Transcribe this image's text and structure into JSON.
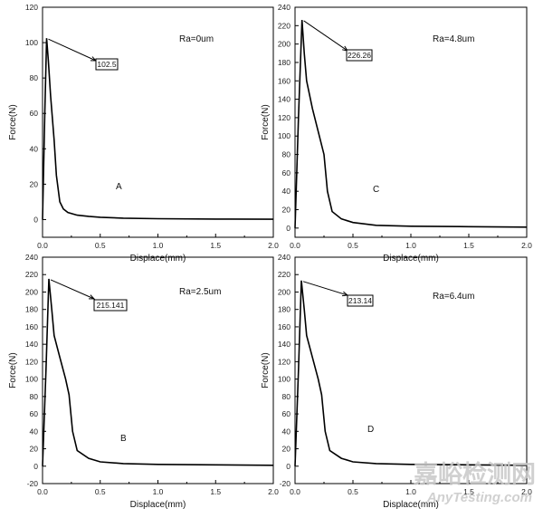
{
  "chart_data": [
    {
      "type": "line",
      "panel_letter": "A",
      "ra_label": "Ra=0um",
      "xlabel": "Displace(mm)",
      "ylabel": "Force(N)",
      "xlim": [
        0,
        2.0
      ],
      "ylim": [
        -10,
        120
      ],
      "xticks": [
        "0.0",
        "0.5",
        "1.0",
        "1.5",
        "2.0"
      ],
      "yticks": [
        "0",
        "20",
        "40",
        "60",
        "80",
        "100",
        "120"
      ],
      "peak_label": "102.5",
      "series": [
        {
          "name": "Ra=0um",
          "x": [
            0.0,
            0.02,
            0.035,
            0.05,
            0.07,
            0.1,
            0.12,
            0.15,
            0.18,
            0.22,
            0.3,
            0.4,
            0.5,
            0.7,
            1.0,
            1.5,
            2.0
          ],
          "y": [
            0,
            60,
            102.5,
            90,
            70,
            45,
            25,
            10,
            6,
            4,
            2.5,
            1.8,
            1.3,
            0.8,
            0.5,
            0.3,
            0.2
          ]
        }
      ]
    },
    {
      "type": "line",
      "panel_letter": "C",
      "ra_label": "Ra=4.8um",
      "xlabel": "Displace(mm)",
      "ylabel": "Force(N)",
      "xlim": [
        0,
        2.0
      ],
      "ylim": [
        -10,
        240
      ],
      "xticks": [
        "0.0",
        "0.5",
        "1.0",
        "1.5",
        "2.0"
      ],
      "yticks": [
        "0",
        "20",
        "40",
        "60",
        "80",
        "100",
        "120",
        "140",
        "160",
        "180",
        "200",
        "220",
        "240"
      ],
      "peak_label": "226.26",
      "series": [
        {
          "name": "Ra=4.8um",
          "x": [
            0.0,
            0.03,
            0.06,
            0.08,
            0.1,
            0.15,
            0.2,
            0.25,
            0.28,
            0.32,
            0.4,
            0.5,
            0.7,
            1.0,
            1.5,
            2.0
          ],
          "y": [
            0,
            120,
            226.26,
            190,
            160,
            130,
            105,
            80,
            40,
            18,
            10,
            6,
            3,
            2,
            1.5,
            1
          ]
        }
      ]
    },
    {
      "type": "line",
      "panel_letter": "B",
      "ra_label": "Ra=2.5um",
      "xlabel": "Displace(mm)",
      "ylabel": "Force(N)",
      "xlim": [
        0,
        2.0
      ],
      "ylim": [
        -20,
        240
      ],
      "xticks": [
        "0.0",
        "0.5",
        "1.0",
        "1.5",
        "2.0"
      ],
      "yticks": [
        "-20",
        "0",
        "20",
        "40",
        "60",
        "80",
        "100",
        "120",
        "140",
        "160",
        "180",
        "200",
        "220",
        "240"
      ],
      "peak_label": "215.141",
      "series": [
        {
          "name": "Ra=2.5um",
          "x": [
            0.0,
            0.03,
            0.055,
            0.08,
            0.1,
            0.15,
            0.2,
            0.23,
            0.26,
            0.3,
            0.4,
            0.5,
            0.7,
            1.0,
            1.5,
            2.0
          ],
          "y": [
            0,
            110,
            215.141,
            180,
            150,
            125,
            100,
            82,
            40,
            18,
            9,
            5,
            3,
            2,
            1.5,
            1
          ]
        }
      ]
    },
    {
      "type": "line",
      "panel_letter": "D",
      "ra_label": "Ra=6.4um",
      "xlabel": "Displace(mm)",
      "ylabel": "Force(N)",
      "xlim": [
        0,
        2.0
      ],
      "ylim": [
        -20,
        240
      ],
      "xticks": [
        "0.0",
        "0.5",
        "1.0",
        "1.5",
        "2.0"
      ],
      "yticks": [
        "-20",
        "0",
        "20",
        "40",
        "60",
        "80",
        "100",
        "120",
        "140",
        "160",
        "180",
        "200",
        "220",
        "240"
      ],
      "peak_label": "213.14",
      "series": [
        {
          "name": "Ra=6.4um",
          "x": [
            0.0,
            0.03,
            0.055,
            0.08,
            0.1,
            0.15,
            0.2,
            0.23,
            0.26,
            0.3,
            0.4,
            0.5,
            0.7,
            1.0,
            1.5,
            2.0
          ],
          "y": [
            0,
            110,
            213.14,
            180,
            150,
            125,
            100,
            82,
            40,
            18,
            9,
            5,
            3,
            2,
            1.5,
            1
          ]
        }
      ]
    }
  ],
  "watermark": {
    "main": "嘉峪检测网",
    "sub": "AnyTesting.com"
  }
}
